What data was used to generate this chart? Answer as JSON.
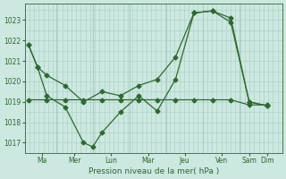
{
  "title": "",
  "xlabel": "Pression niveau de la mer( hPa )",
  "ylabel": "",
  "bg_color": "#cce8e0",
  "grid_color": "#aaccc4",
  "line_color": "#2d6a2d",
  "ylim": [
    1016.5,
    1023.8
  ],
  "series1_x": [
    0,
    0.5,
    1,
    2,
    3,
    4,
    5,
    6,
    7,
    8,
    9,
    10,
    11,
    12,
    13
  ],
  "series1_y": [
    1021.8,
    1020.7,
    1020.3,
    1019.8,
    1019.0,
    1019.5,
    1019.3,
    1019.8,
    1020.1,
    1021.2,
    1023.35,
    1023.45,
    1023.1,
    1019.0,
    1018.8
  ],
  "series2_x": [
    0,
    0.5,
    1,
    2,
    3,
    3.5,
    4,
    5,
    6,
    7,
    8,
    9,
    10,
    11,
    12,
    13
  ],
  "series2_y": [
    1021.8,
    1020.7,
    1019.3,
    1018.75,
    1017.0,
    1016.8,
    1017.5,
    1018.5,
    1019.3,
    1018.55,
    1020.1,
    1023.35,
    1023.45,
    1022.9,
    1019.0,
    1018.8
  ],
  "series3_x": [
    0,
    1,
    2,
    3,
    4,
    5,
    6,
    7,
    8,
    9,
    10,
    11,
    12,
    13
  ],
  "series3_y": [
    1019.1,
    1019.1,
    1019.1,
    1019.1,
    1019.1,
    1019.1,
    1019.1,
    1019.1,
    1019.1,
    1019.1,
    1019.1,
    1019.1,
    1018.85,
    1018.85
  ],
  "day_sep_x": [
    1.5,
    3.5,
    5.5,
    7.5,
    9.5,
    11.5
  ],
  "xtick_positions": [
    0.75,
    2.5,
    4.5,
    6.5,
    8.5,
    10.5,
    12.0,
    13.0
  ],
  "xtick_labels": [
    "Ma",
    "Mer",
    "Lun",
    "Mar",
    "Jeu",
    "Ven",
    "Sam",
    "Dim"
  ],
  "ytick_vals": [
    1017,
    1018,
    1019,
    1020,
    1021,
    1022,
    1023
  ],
  "marker_size": 2.5,
  "xlim": [
    -0.2,
    13.8
  ]
}
